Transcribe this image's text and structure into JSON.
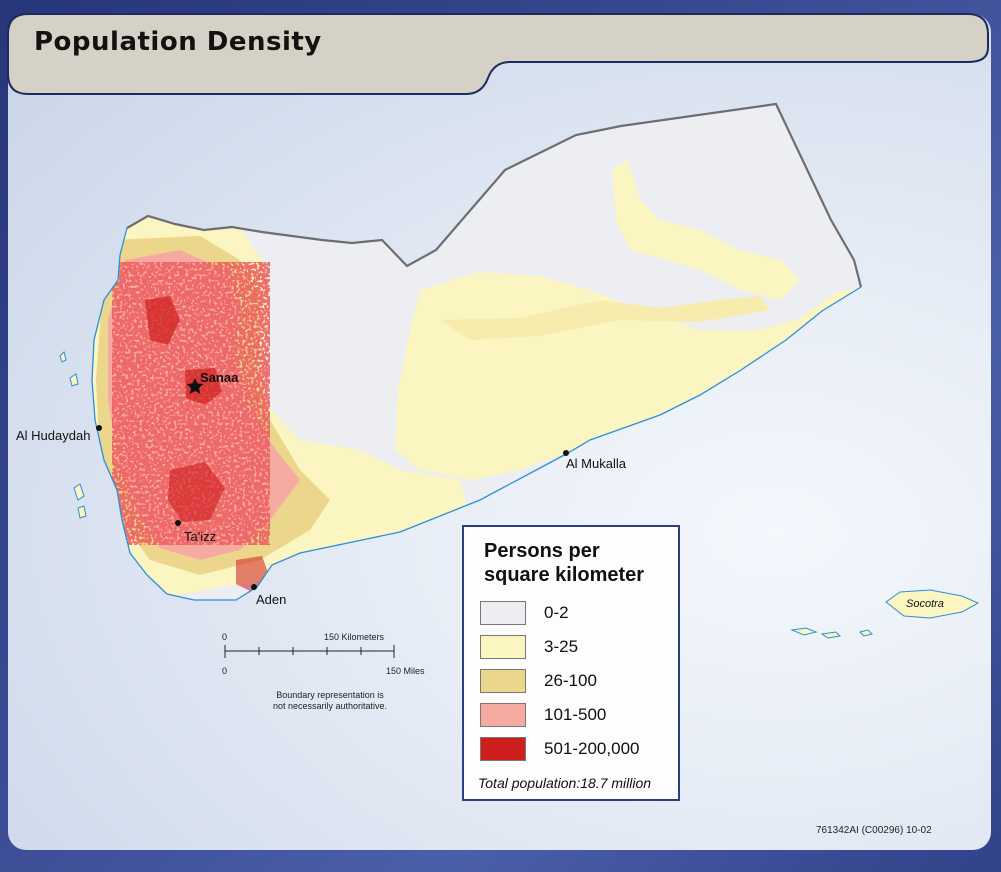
{
  "title": "Population Density",
  "legend": {
    "title": "Persons per\nsquare kilometer",
    "items": [
      {
        "label": "0-2",
        "color": "#eceef1"
      },
      {
        "label": "3-25",
        "color": "#fbf5c2"
      },
      {
        "label": "26-100",
        "color": "#ecd68c"
      },
      {
        "label": "101-500",
        "color": "#f6aba2"
      },
      {
        "label": "501-200,000",
        "color": "#cf1e1e"
      }
    ],
    "total": "Total population:18.7 million"
  },
  "cities": {
    "sanaa": "Sanaa",
    "al_hudaydah": "Al Hudaydah",
    "taizz": "Ta'izz",
    "aden": "Aden",
    "al_mukalla": "Al Mukalla",
    "socotra": "Socotra"
  },
  "scale": {
    "km_zero": "0",
    "km_label": "150 Kilometers",
    "mi_zero": "0",
    "mi_label": "150 Miles"
  },
  "note": "Boundary representation is\nnot necessarily authoritative.",
  "code": "761342AI (C00296) 10-02",
  "colors": {
    "border": "#6d6d72",
    "coast": "#2b8fd6",
    "frame": "#2d3f7e",
    "title_tab": "#d6d1c6"
  }
}
